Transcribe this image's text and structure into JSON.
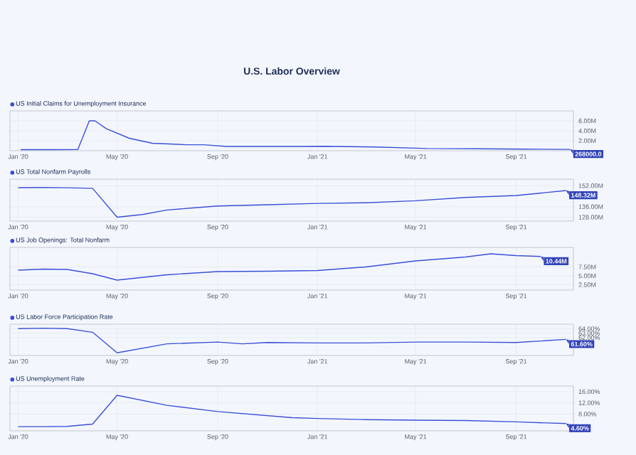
{
  "chart_data": [
    {
      "type": "line",
      "title": "U.S. Labor Overview",
      "legend": "top left",
      "grid": true,
      "series": [
        {
          "name": "US Initial Claims for Unemployment Insurance",
          "color": "#3b4fd8",
          "x": [
            "2020-01-04",
            "2020-02-15",
            "2020-03-14",
            "2020-03-28",
            "2020-04-04",
            "2020-04-18",
            "2020-05-16",
            "2020-06-13",
            "2020-07-25",
            "2020-08-15",
            "2020-09-12",
            "2020-12-12",
            "2021-01-09",
            "2021-03-13",
            "2021-05-15",
            "2021-07-17",
            "2021-09-11",
            "2021-11-06"
          ],
          "values": [
            210000,
            210000,
            250000,
            6000000,
            6000000,
            4400000,
            2500000,
            1500000,
            1200000,
            1200000,
            850000,
            850000,
            900000,
            750000,
            450000,
            400000,
            330000,
            268000
          ]
        }
      ],
      "xlim": [
        "2019-12-22",
        "2021-11-10"
      ],
      "xticks": [
        {
          "value": "2020-01-01",
          "label": "Jan '20"
        },
        {
          "value": "2020-05-01",
          "label": "May '20"
        },
        {
          "value": "2020-09-01",
          "label": "Sep '20"
        },
        {
          "value": "2021-01-01",
          "label": "Jan '21"
        },
        {
          "value": "2021-05-01",
          "label": "May '21"
        },
        {
          "value": "2021-09-01",
          "label": "Sep '21"
        }
      ],
      "ylim": [
        0,
        8000000
      ],
      "yticks": [
        {
          "value": 2000000,
          "label": "2.00M"
        },
        {
          "value": 4000000,
          "label": "4.00M"
        },
        {
          "value": 6000000,
          "label": "6.00M"
        }
      ],
      "annotations": [
        {
          "text": "268000.0",
          "x": "2021-11-06",
          "y": 268000
        }
      ]
    },
    {
      "type": "line",
      "legend": "top left",
      "grid": true,
      "series": [
        {
          "name": "US Total Nonfarm Payrolls",
          "color": "#3b4fd8",
          "x": [
            "2020-01-01",
            "2020-02-01",
            "2020-03-01",
            "2020-04-01",
            "2020-05-01",
            "2020-06-01",
            "2020-07-01",
            "2020-08-01",
            "2020-09-01",
            "2020-11-01",
            "2021-01-01",
            "2021-03-01",
            "2021-05-01",
            "2021-07-01",
            "2021-09-01",
            "2021-11-01"
          ],
          "values": [
            150500000,
            150600000,
            150400000,
            150000000,
            128000000,
            130000000,
            133500000,
            135000000,
            136500000,
            137500000,
            138500000,
            139000000,
            140500000,
            143000000,
            144500000,
            148320000
          ]
        }
      ],
      "xlim": [
        "2019-12-22",
        "2021-11-10"
      ],
      "xticks": [
        {
          "value": "2020-01-01",
          "label": "Jan '20"
        },
        {
          "value": "2020-05-01",
          "label": "May '20"
        },
        {
          "value": "2020-09-01",
          "label": "Sep '20"
        },
        {
          "value": "2021-01-01",
          "label": "Jan '21"
        },
        {
          "value": "2021-05-01",
          "label": "May '21"
        },
        {
          "value": "2021-09-01",
          "label": "Sep '21"
        }
      ],
      "ylim": [
        125000000,
        157000000
      ],
      "yticks": [
        {
          "value": 128000000,
          "label": "128.00M"
        },
        {
          "value": 136000000,
          "label": "136.00M"
        },
        {
          "value": 152000000,
          "label": "152.00M"
        }
      ],
      "annotations": [
        {
          "text": "148.32M",
          "x": "2021-11-01",
          "y": 148320000
        }
      ]
    },
    {
      "type": "line",
      "legend": "top left",
      "grid": true,
      "series": [
        {
          "name": "US Job Openings: Total Nonfarm",
          "color": "#3b4fd8",
          "x": [
            "2020-01-01",
            "2020-02-01",
            "2020-03-01",
            "2020-04-01",
            "2020-05-01",
            "2020-07-01",
            "2020-09-01",
            "2020-11-01",
            "2021-01-01",
            "2021-03-01",
            "2021-05-01",
            "2021-07-01",
            "2021-08-01",
            "2021-09-01",
            "2021-10-01"
          ],
          "values": [
            6600000,
            6900000,
            6800000,
            5600000,
            3800000,
            5300000,
            6200000,
            6300000,
            6500000,
            7500000,
            9200000,
            10300000,
            11200000,
            10700000,
            10440000
          ]
        }
      ],
      "xlim": [
        "2019-12-22",
        "2021-11-10"
      ],
      "xticks": [
        {
          "value": "2020-01-01",
          "label": "Jan '20"
        },
        {
          "value": "2020-05-01",
          "label": "May '20"
        },
        {
          "value": "2020-09-01",
          "label": "Sep '20"
        },
        {
          "value": "2021-01-01",
          "label": "Jan '21"
        },
        {
          "value": "2021-05-01",
          "label": "May '21"
        },
        {
          "value": "2021-09-01",
          "label": "Sep '21"
        }
      ],
      "ylim": [
        1000000,
        13000000
      ],
      "yticks": [
        {
          "value": 2500000,
          "label": "2.50M"
        },
        {
          "value": 5000000,
          "label": "5.00M"
        },
        {
          "value": 7500000,
          "label": "7.50M"
        }
      ],
      "annotations": [
        {
          "text": "10.44M",
          "x": "2021-10-01",
          "y": 10440000
        }
      ]
    },
    {
      "type": "line",
      "legend": "top left",
      "grid": true,
      "series": [
        {
          "name": "US Labor Force Participation Rate",
          "color": "#3b4fd8",
          "x": [
            "2020-01-01",
            "2020-02-01",
            "2020-03-01",
            "2020-04-01",
            "2020-05-01",
            "2020-07-01",
            "2020-09-01",
            "2020-10-01",
            "2020-11-01",
            "2021-01-01",
            "2021-03-01",
            "2021-05-01",
            "2021-07-01",
            "2021-09-01",
            "2021-11-01"
          ],
          "values": [
            64.0,
            64.1,
            64.0,
            63.2,
            58.6,
            60.6,
            61.0,
            60.6,
            60.9,
            60.8,
            60.8,
            61.0,
            61.0,
            60.9,
            61.6
          ]
        }
      ],
      "xlim": [
        "2019-12-22",
        "2021-11-10"
      ],
      "xticks": [
        {
          "value": "2020-01-01",
          "label": "Jan '20"
        },
        {
          "value": "2020-05-01",
          "label": "May '20"
        },
        {
          "value": "2020-09-01",
          "label": "Sep '20"
        },
        {
          "value": "2021-01-01",
          "label": "Jan '21"
        },
        {
          "value": "2021-05-01",
          "label": "May '21"
        },
        {
          "value": "2021-09-01",
          "label": "Sep '21"
        }
      ],
      "ylim": [
        58,
        65
      ],
      "yticks": [
        {
          "value": 62,
          "label": "62.00%"
        },
        {
          "value": 63,
          "label": "63.00%"
        },
        {
          "value": 64,
          "label": "64.00%"
        }
      ],
      "annotations": [
        {
          "text": "61.60%",
          "x": "2021-11-01",
          "y": 61.6
        }
      ]
    },
    {
      "type": "line",
      "legend": "top left",
      "grid": true,
      "series": [
        {
          "name": "US Unemployment Rate",
          "color": "#3b4fd8",
          "x": [
            "2020-01-01",
            "2020-02-01",
            "2020-03-01",
            "2020-04-01",
            "2020-05-01",
            "2020-07-01",
            "2020-09-01",
            "2020-12-01",
            "2021-01-01",
            "2021-03-01",
            "2021-05-01",
            "2021-07-01",
            "2021-09-01",
            "2021-11-01"
          ],
          "values": [
            3.5,
            3.5,
            3.6,
            4.4,
            14.7,
            11.1,
            8.9,
            6.7,
            6.4,
            6.0,
            5.8,
            5.7,
            5.2,
            4.6
          ]
        }
      ],
      "xlim": [
        "2019-12-22",
        "2021-11-10"
      ],
      "xticks": [
        {
          "value": "2020-01-01",
          "label": "Jan '20"
        },
        {
          "value": "2020-05-01",
          "label": "May '20"
        },
        {
          "value": "2020-09-01",
          "label": "Sep '20"
        },
        {
          "value": "2021-01-01",
          "label": "Jan '21"
        },
        {
          "value": "2021-05-01",
          "label": "May '21"
        },
        {
          "value": "2021-09-01",
          "label": "Sep '21"
        }
      ],
      "ylim": [
        2,
        18
      ],
      "yticks": [
        {
          "value": 8,
          "label": "8.00%"
        },
        {
          "value": 12,
          "label": "12.00%"
        },
        {
          "value": 16,
          "label": "16.00%"
        }
      ],
      "annotations": [
        {
          "text": "4.60%",
          "x": "2021-11-01",
          "y": 4.6
        }
      ]
    }
  ]
}
